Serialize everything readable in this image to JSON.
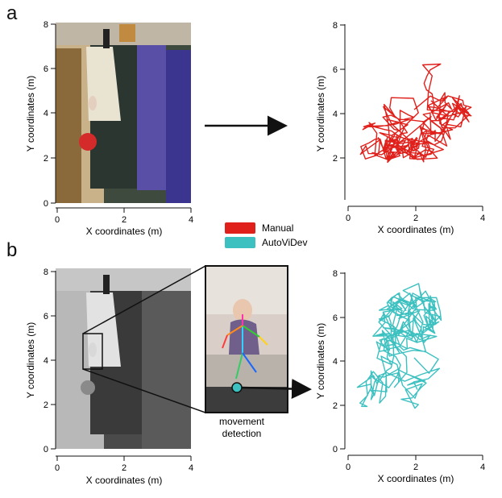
{
  "panels": {
    "a": {
      "letter": "a",
      "left_axes": {
        "ylabel": "Y coordinates (m)",
        "xlabel": "X coordinates (m)",
        "xticks": [
          "0",
          "2",
          "4"
        ],
        "yticks": [
          "0",
          "2",
          "4",
          "6",
          "8"
        ]
      },
      "right_axes": {
        "ylabel": "Y coordinates (m)",
        "xlabel": "X coordinates (m)",
        "xticks": [
          "0",
          "2",
          "4"
        ],
        "yticks": [
          "2",
          "4",
          "6",
          "8"
        ]
      }
    },
    "b": {
      "letter": "b",
      "left_axes": {
        "ylabel": "Y coordinates (m)",
        "xlabel": "X coordinates (m)",
        "xticks": [
          "0",
          "2",
          "4"
        ],
        "yticks": [
          "0",
          "2",
          "4",
          "6",
          "8"
        ]
      },
      "right_axes": {
        "ylabel": "Y coordinates (m)",
        "xlabel": "X coordinates (m)",
        "xticks": [
          "0",
          "2",
          "4"
        ],
        "yticks": [
          "0",
          "2",
          "4",
          "6",
          "8"
        ]
      },
      "zoom_caption": [
        "movement",
        "detection"
      ]
    }
  },
  "legend": [
    {
      "label": "Manual",
      "color": "#e0201b"
    },
    {
      "label": "AutoViDev",
      "color": "#3cc0c0"
    }
  ],
  "colors": {
    "manual_trace": "#e0201b",
    "autovidev_trace": "#3cc0c0",
    "arrow": "#111111"
  }
}
